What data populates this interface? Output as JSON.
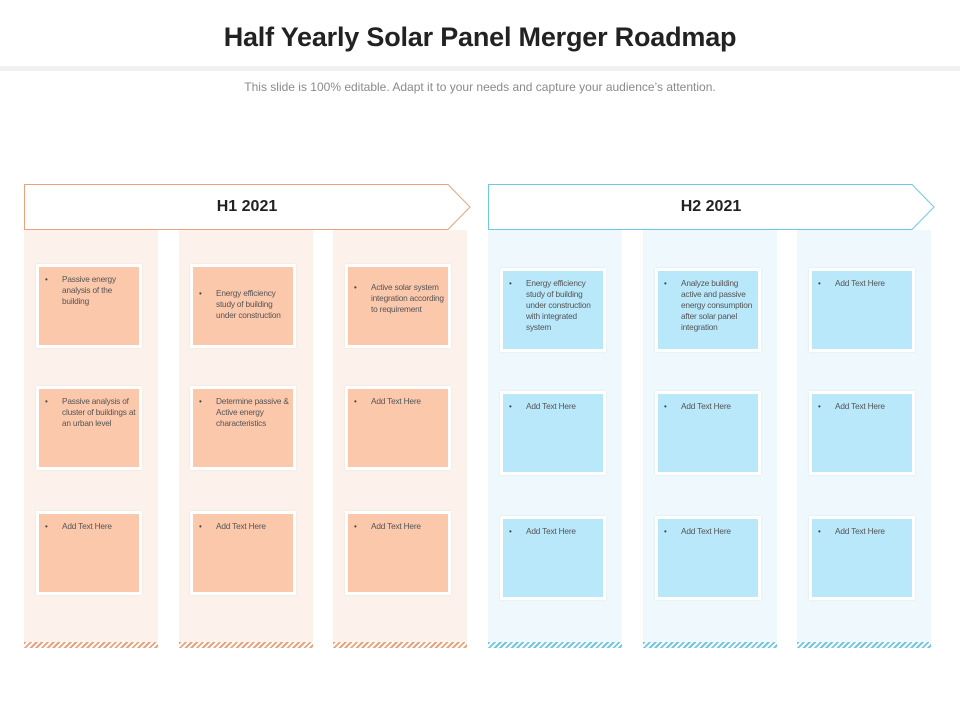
{
  "title": "Half Yearly Solar Panel Merger  Roadmap",
  "subtitle": "This slide is 100% editable. Adapt it to your needs and capture your audience’s attention.",
  "colors": {
    "orange_card": "#fcc8ac",
    "blue_card": "#bae8fb",
    "orange_border": "#e9a27c",
    "blue_border": "#6fc7e8"
  },
  "phases": [
    {
      "label": "H1 2021",
      "theme": "orange"
    },
    {
      "label": "H2 2021",
      "theme": "blue"
    }
  ],
  "bullet_glyph": "•",
  "columns": [
    {
      "items": [
        "Passive energy analysis of the building",
        "Passive analysis of cluster of buildings at an urban level",
        "Add Text Here"
      ]
    },
    {
      "items": [
        "Energy efficiency study of building under construction",
        "Determine passive & Active energy characteristics",
        "Add Text Here"
      ]
    },
    {
      "items": [
        "Active solar system integration according to requirement",
        "Add Text Here",
        "Add Text Here"
      ]
    },
    {
      "items": [
        "Energy efficiency study of building under construction with integrated system",
        "Add Text Here",
        "Add Text Here"
      ]
    },
    {
      "items": [
        "Analyze building active and passive energy consumption after solar panel integration",
        "Add Text Here",
        "Add Text Here"
      ]
    },
    {
      "items": [
        "Add Text Here",
        "Add Text Here",
        "Add Text Here"
      ]
    }
  ]
}
